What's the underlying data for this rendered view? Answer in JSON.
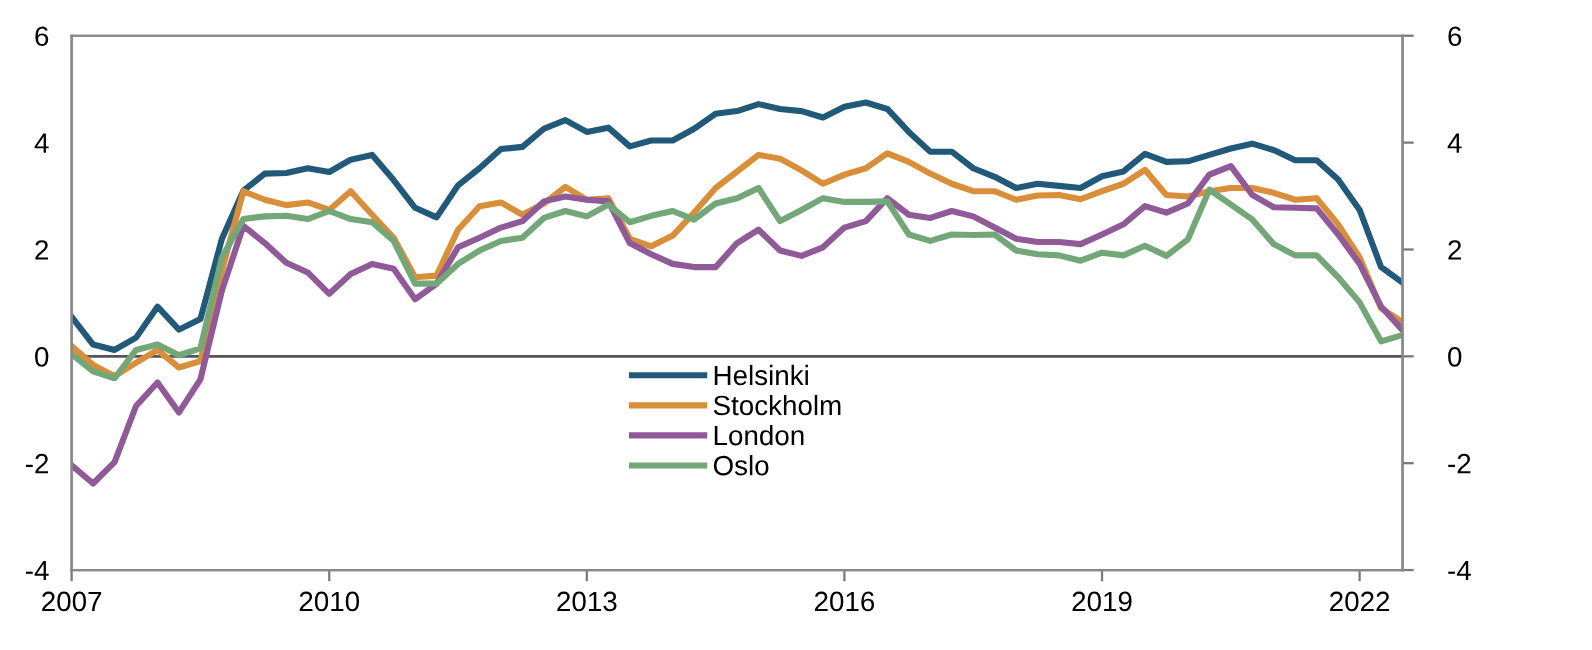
{
  "chart_data": {
    "type": "line",
    "x": [
      2007,
      2007.25,
      2007.5,
      2007.75,
      2008,
      2008.25,
      2008.5,
      2008.75,
      2009,
      2009.25,
      2009.5,
      2009.75,
      2010,
      2010.25,
      2010.5,
      2010.75,
      2011,
      2011.25,
      2011.5,
      2011.75,
      2012,
      2012.25,
      2012.5,
      2012.75,
      2013,
      2013.25,
      2013.5,
      2013.75,
      2014,
      2014.25,
      2014.5,
      2014.75,
      2015,
      2015.25,
      2015.5,
      2015.75,
      2016,
      2016.25,
      2016.5,
      2016.75,
      2017,
      2017.25,
      2017.5,
      2017.75,
      2018,
      2018.25,
      2018.5,
      2018.75,
      2019,
      2019.25,
      2019.5,
      2019.75,
      2020,
      2020.25,
      2020.5,
      2020.75,
      2021,
      2021.25,
      2021.5,
      2021.75,
      2022,
      2022.25,
      2022.5
    ],
    "series": [
      {
        "name": "Helsinki",
        "color": "#215a78",
        "values": [
          0.74,
          0.22,
          0.12,
          0.35,
          0.93,
          0.5,
          0.7,
          2.2,
          3.1,
          3.42,
          3.43,
          3.52,
          3.45,
          3.68,
          3.77,
          3.3,
          2.78,
          2.6,
          3.2,
          3.52,
          3.88,
          3.92,
          4.26,
          4.42,
          4.2,
          4.28,
          3.93,
          4.04,
          4.04,
          4.26,
          4.54,
          4.59,
          4.72,
          4.63,
          4.59,
          4.47,
          4.67,
          4.75,
          4.63,
          4.2,
          3.83,
          3.83,
          3.52,
          3.36,
          3.15,
          3.23,
          3.19,
          3.15,
          3.37,
          3.46,
          3.79,
          3.64,
          3.65,
          3.77,
          3.89,
          3.98,
          3.86,
          3.67,
          3.67,
          3.31,
          2.74,
          1.67,
          1.38
        ]
      },
      {
        "name": "Stockholm",
        "color": "#d98e3a",
        "values": [
          0.19,
          -0.16,
          -0.37,
          -0.12,
          0.12,
          -0.21,
          -0.09,
          1.6,
          3.09,
          2.93,
          2.83,
          2.88,
          2.74,
          3.09,
          2.65,
          2.22,
          1.48,
          1.51,
          2.37,
          2.81,
          2.88,
          2.65,
          2.86,
          3.17,
          2.93,
          2.96,
          2.2,
          2.06,
          2.26,
          2.69,
          3.15,
          3.46,
          3.77,
          3.7,
          3.48,
          3.23,
          3.4,
          3.52,
          3.8,
          3.64,
          3.42,
          3.23,
          3.09,
          3.09,
          2.93,
          3.01,
          3.02,
          2.94,
          3.09,
          3.23,
          3.49,
          3.02,
          2.99,
          3.09,
          3.15,
          3.15,
          3.06,
          2.93,
          2.96,
          2.47,
          1.85,
          0.9,
          0.64
        ]
      },
      {
        "name": "London",
        "color": "#8f5a97",
        "values": [
          -2.04,
          -2.38,
          -1.98,
          -0.93,
          -0.49,
          -1.05,
          -0.43,
          1.23,
          2.44,
          2.12,
          1.75,
          1.57,
          1.17,
          1.54,
          1.73,
          1.64,
          1.07,
          1.36,
          2.04,
          2.22,
          2.41,
          2.53,
          2.9,
          2.99,
          2.93,
          2.9,
          2.12,
          1.91,
          1.73,
          1.67,
          1.67,
          2.12,
          2.37,
          1.98,
          1.88,
          2.04,
          2.41,
          2.53,
          2.96,
          2.65,
          2.59,
          2.72,
          2.62,
          2.41,
          2.2,
          2.14,
          2.14,
          2.1,
          2.28,
          2.47,
          2.81,
          2.69,
          2.86,
          3.4,
          3.56,
          3.02,
          2.79,
          2.78,
          2.77,
          2.28,
          1.73,
          0.93,
          0.49
        ]
      },
      {
        "name": "Oslo",
        "color": "#74a778",
        "values": [
          0.04,
          -0.28,
          -0.41,
          0.12,
          0.22,
          0.02,
          0.15,
          1.85,
          2.57,
          2.62,
          2.63,
          2.57,
          2.72,
          2.57,
          2.51,
          2.16,
          1.36,
          1.36,
          1.73,
          1.98,
          2.16,
          2.22,
          2.59,
          2.72,
          2.62,
          2.84,
          2.51,
          2.63,
          2.72,
          2.56,
          2.86,
          2.96,
          3.15,
          2.53,
          2.74,
          2.96,
          2.89,
          2.89,
          2.9,
          2.28,
          2.16,
          2.28,
          2.27,
          2.28,
          1.98,
          1.91,
          1.89,
          1.79,
          1.94,
          1.89,
          2.07,
          1.88,
          2.19,
          3.12,
          2.84,
          2.56,
          2.1,
          1.89,
          1.89,
          1.48,
          1.01,
          0.28,
          0.4
        ]
      }
    ],
    "xlim": [
      2007,
      2022.5
    ],
    "xticks": [
      2007,
      2010,
      2013,
      2016,
      2019,
      2022
    ],
    "ylim": [
      -4,
      6
    ],
    "yticks": [
      -4,
      -2,
      0,
      2,
      4,
      6
    ],
    "y2lim": [
      -4,
      6
    ],
    "y2ticks": [
      -4,
      -2,
      0,
      2,
      4,
      6
    ],
    "ref_lines": [
      {
        "axis": "y",
        "value": 0,
        "color": "#555555"
      }
    ],
    "grid": false,
    "legend": "bottom",
    "marker": "none",
    "line_style": "solid"
  }
}
